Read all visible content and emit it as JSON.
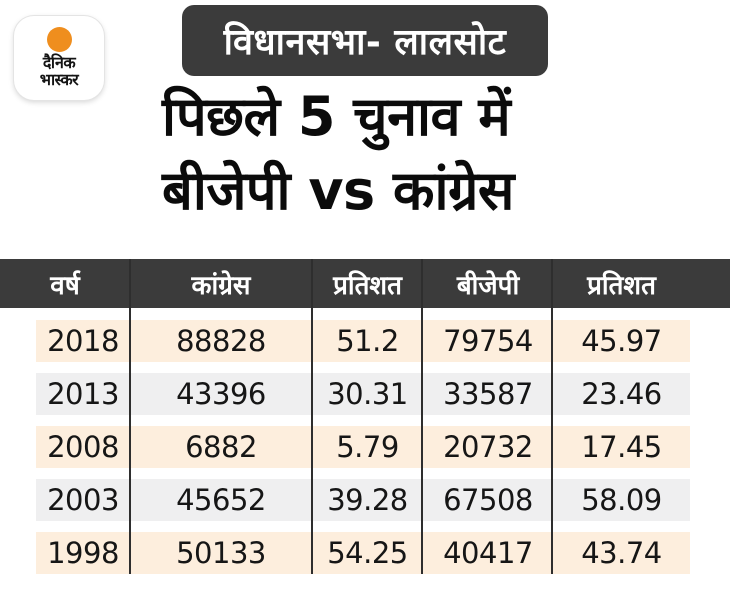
{
  "brand": {
    "logo_line1": "दैनिक",
    "logo_line2": "भास्कर"
  },
  "header": {
    "badge": "विधानसभा- लालसोट",
    "title_line1": "पिछले 5 चुनाव में",
    "title_line2": "बीजेपी vs कांग्रेस"
  },
  "colors": {
    "dark_bar": "#3b3b3b",
    "row_peach": "#fdeedd",
    "row_gray": "#efeff0",
    "logo_orange": "#ef8e1e",
    "divider": "#2e2e2e"
  },
  "table": {
    "columns": [
      "वर्ष",
      "कांग्रेस",
      "प्रतिशत",
      "बीजेपी",
      "प्रतिशत"
    ],
    "rows": [
      [
        "2018",
        "88828",
        "51.2",
        "79754",
        "45.97"
      ],
      [
        "2013",
        "43396",
        "30.31",
        "33587",
        "23.46"
      ],
      [
        "2008",
        "6882",
        "5.79",
        "20732",
        "17.45"
      ],
      [
        "2003",
        "45652",
        "39.28",
        "67508",
        "58.09"
      ],
      [
        "1998",
        "50133",
        "54.25",
        "40417",
        "43.74"
      ]
    ]
  },
  "chart_data": {
    "type": "table",
    "title": "पिछले 5 चुनाव में बीजेपी vs कांग्रेस",
    "subtitle": "विधानसभा- लालसोट",
    "columns": [
      "वर्ष",
      "कांग्रेस",
      "प्रतिशत",
      "बीजेपी",
      "प्रतिशत"
    ],
    "rows": [
      [
        2018,
        88828,
        51.2,
        79754,
        45.97
      ],
      [
        2013,
        43396,
        30.31,
        33587,
        23.46
      ],
      [
        2008,
        6882,
        5.79,
        20732,
        17.45
      ],
      [
        2003,
        45652,
        39.28,
        67508,
        58.09
      ],
      [
        1998,
        50133,
        54.25,
        40417,
        43.74
      ]
    ]
  }
}
